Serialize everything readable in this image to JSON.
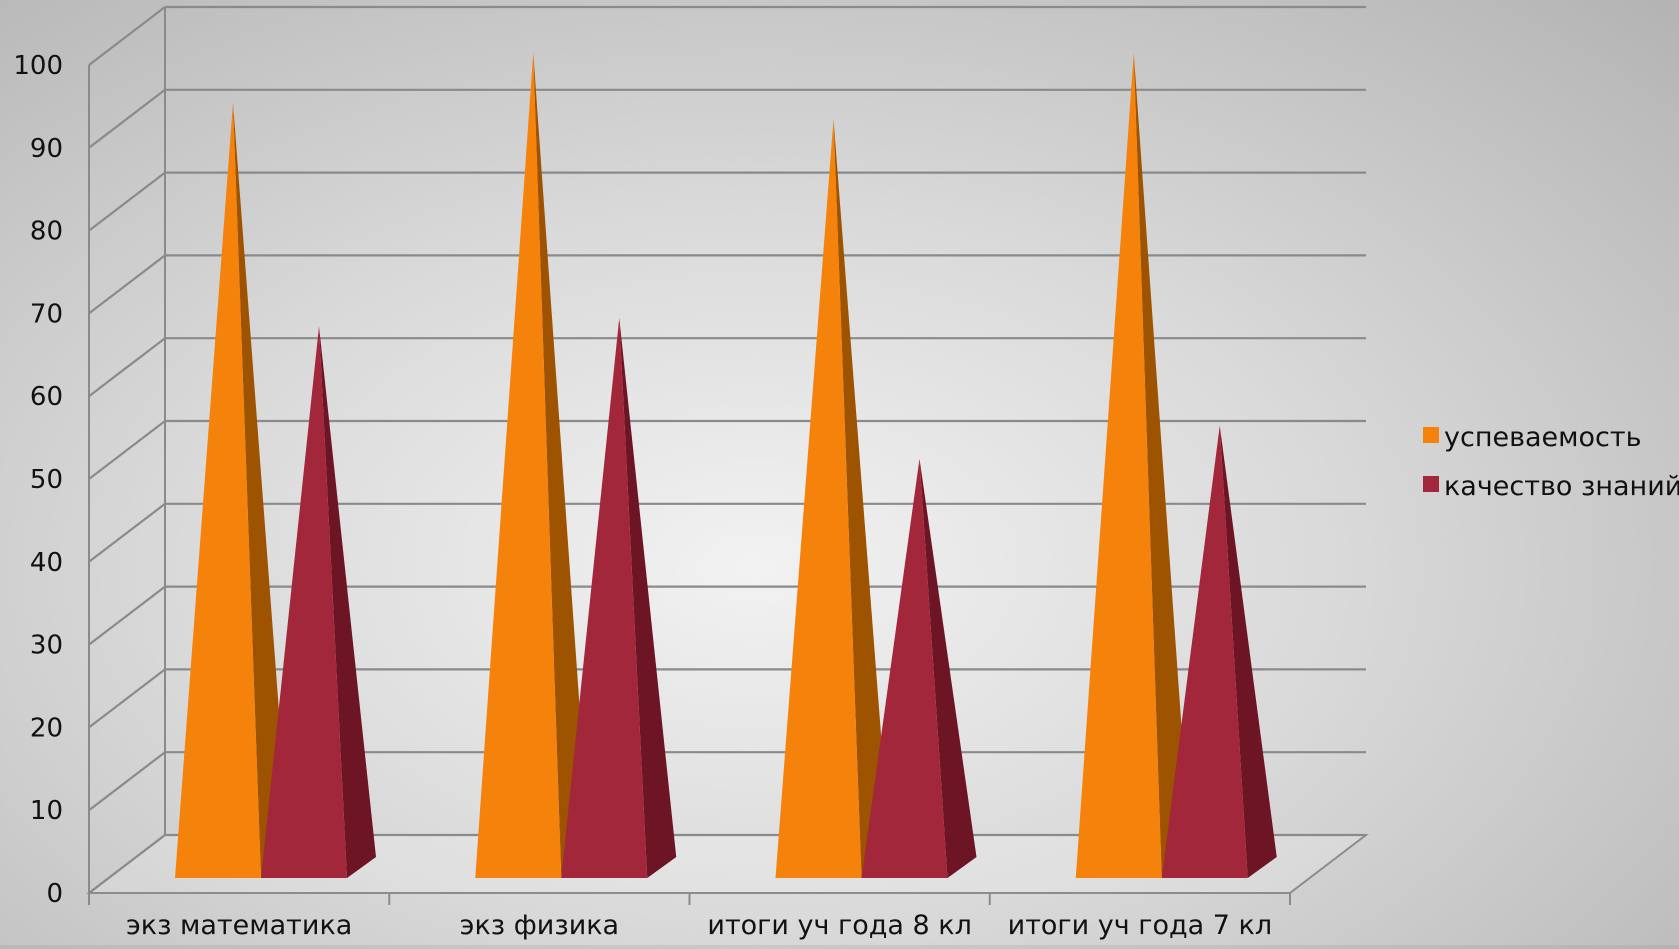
{
  "chart_data": {
    "type": "bar",
    "style": "3d-pyramid",
    "categories": [
      "экз математика",
      "экз физика",
      "итоги уч года 8 кл",
      "итоги уч года 7 кл"
    ],
    "series": [
      {
        "name": "успеваемость",
        "values": [
          94,
          100,
          92,
          100
        ],
        "color": "#f5820a",
        "shade": "#9e5300"
      },
      {
        "name": "качество знаний",
        "values": [
          67,
          68,
          51,
          55
        ],
        "color": "#a3273a",
        "shade": "#6e1525"
      }
    ],
    "ylim": [
      0,
      100
    ],
    "yticks": [
      0,
      10,
      20,
      30,
      40,
      50,
      60,
      70,
      80,
      90,
      100
    ],
    "grid": true,
    "legend_position": "right",
    "title": "",
    "xlabel": "",
    "ylabel": ""
  }
}
